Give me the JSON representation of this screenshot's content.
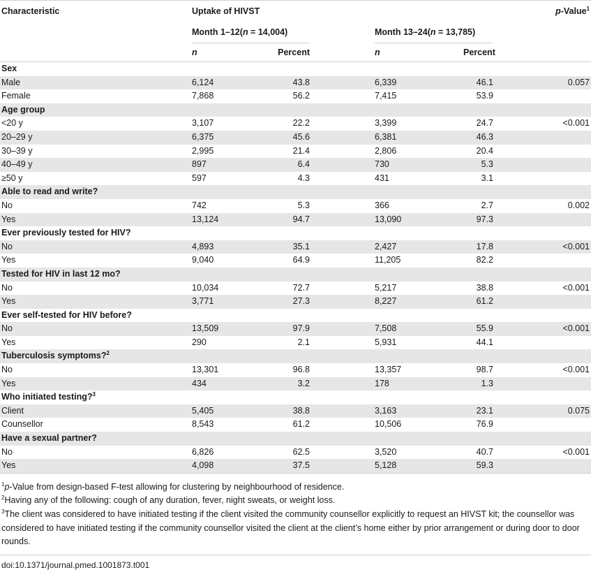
{
  "headers": {
    "characteristic": "Characteristic",
    "uptake": "Uptake of HIVST",
    "pvalue_italic": "p",
    "pvalue_rest": "-Value",
    "pvalue_sup": "1",
    "period1": "Month 1–12(",
    "period1_n": "n",
    "period1_rest": " = 14,004)",
    "period2": "Month 13–24(",
    "period2_n": "n",
    "period2_rest": " = 13,785)",
    "n": "n",
    "percent": "Percent"
  },
  "groups": [
    {
      "title": "Sex",
      "sup": "",
      "rows": [
        {
          "label": "Male",
          "n1": "6,124",
          "p1": "43.8",
          "n2": "6,339",
          "p2": "46.1",
          "pv": "0.057"
        },
        {
          "label": "Female",
          "n1": "7,868",
          "p1": "56.2",
          "n2": "7,415",
          "p2": "53.9",
          "pv": ""
        }
      ]
    },
    {
      "title": "Age group",
      "sup": "",
      "rows": [
        {
          "label": "<20 y",
          "n1": "3,107",
          "p1": "22.2",
          "n2": "3,399",
          "p2": "24.7",
          "pv": "<0.001"
        },
        {
          "label": "20–29 y",
          "n1": "6,375",
          "p1": "45.6",
          "n2": "6,381",
          "p2": "46.3",
          "pv": ""
        },
        {
          "label": "30–39 y",
          "n1": "2,995",
          "p1": "21.4",
          "n2": "2,806",
          "p2": "20.4",
          "pv": ""
        },
        {
          "label": "40–49 y",
          "n1": "897",
          "p1": "6.4",
          "n2": "730",
          "p2": "5.3",
          "pv": ""
        },
        {
          "label": "≥50 y",
          "n1": "597",
          "p1": "4.3",
          "n2": "431",
          "p2": "3.1",
          "pv": ""
        }
      ]
    },
    {
      "title": "Able to read and write?",
      "sup": "",
      "rows": [
        {
          "label": "No",
          "n1": "742",
          "p1": "5.3",
          "n2": "366",
          "p2": "2.7",
          "pv": "0.002"
        },
        {
          "label": "Yes",
          "n1": "13,124",
          "p1": "94.7",
          "n2": "13,090",
          "p2": "97.3",
          "pv": ""
        }
      ]
    },
    {
      "title": "Ever previously tested for HIV?",
      "sup": "",
      "rows": [
        {
          "label": "No",
          "n1": "4,893",
          "p1": "35.1",
          "n2": "2,427",
          "p2": "17.8",
          "pv": "<0.001"
        },
        {
          "label": "Yes",
          "n1": "9,040",
          "p1": "64.9",
          "n2": "11,205",
          "p2": "82.2",
          "pv": ""
        }
      ]
    },
    {
      "title": "Tested for HIV in last 12 mo?",
      "sup": "",
      "rows": [
        {
          "label": "No",
          "n1": "10,034",
          "p1": "72.7",
          "n2": "5,217",
          "p2": "38.8",
          "pv": "<0.001"
        },
        {
          "label": "Yes",
          "n1": "3,771",
          "p1": "27.3",
          "n2": "8,227",
          "p2": "61.2",
          "pv": ""
        }
      ]
    },
    {
      "title": "Ever self-tested for HIV before?",
      "sup": "",
      "rows": [
        {
          "label": "No",
          "n1": "13,509",
          "p1": "97.9",
          "n2": "7,508",
          "p2": "55.9",
          "pv": "<0.001"
        },
        {
          "label": "Yes",
          "n1": "290",
          "p1": "2.1",
          "n2": "5,931",
          "p2": "44.1",
          "pv": ""
        }
      ]
    },
    {
      "title": "Tuberculosis symptoms?",
      "sup": "2",
      "rows": [
        {
          "label": "No",
          "n1": "13,301",
          "p1": "96.8",
          "n2": "13,357",
          "p2": "98.7",
          "pv": "<0.001"
        },
        {
          "label": "Yes",
          "n1": "434",
          "p1": "3.2",
          "n2": "178",
          "p2": "1.3",
          "pv": ""
        }
      ]
    },
    {
      "title": "Who initiated testing?",
      "sup": "3",
      "rows": [
        {
          "label": "Client",
          "n1": "5,405",
          "p1": "38.8",
          "n2": "3,163",
          "p2": "23.1",
          "pv": "0.075"
        },
        {
          "label": "Counsellor",
          "n1": "8,543",
          "p1": "61.2",
          "n2": "10,506",
          "p2": "76.9",
          "pv": ""
        }
      ]
    },
    {
      "title": "Have a sexual partner?",
      "sup": "",
      "rows": [
        {
          "label": "No",
          "n1": "6,826",
          "p1": "62.5",
          "n2": "3,520",
          "p2": "40.7",
          "pv": "<0.001"
        },
        {
          "label": "Yes",
          "n1": "4,098",
          "p1": "37.5",
          "n2": "5,128",
          "p2": "59.3",
          "pv": ""
        }
      ]
    }
  ],
  "footnotes": {
    "fn1_sup": "1",
    "fn1_italic": "p",
    "fn1_text": "-Value from design-based F-test allowing for clustering by neighbourhood of residence.",
    "fn2_sup": "2",
    "fn2_text": "Having any of the following: cough of any duration, fever, night sweats, or weight loss.",
    "fn3_sup": "3",
    "fn3_text": "The client was considered to have initiated testing if the client visited the community counsellor explicitly to request an HIVST kit; the counsellor was considered to have initiated testing if the community counsellor visited the client at the client’s home either by prior arrangement or during door to door rounds."
  },
  "doi": "doi:10.1371/journal.pmed.1001873.t001"
}
